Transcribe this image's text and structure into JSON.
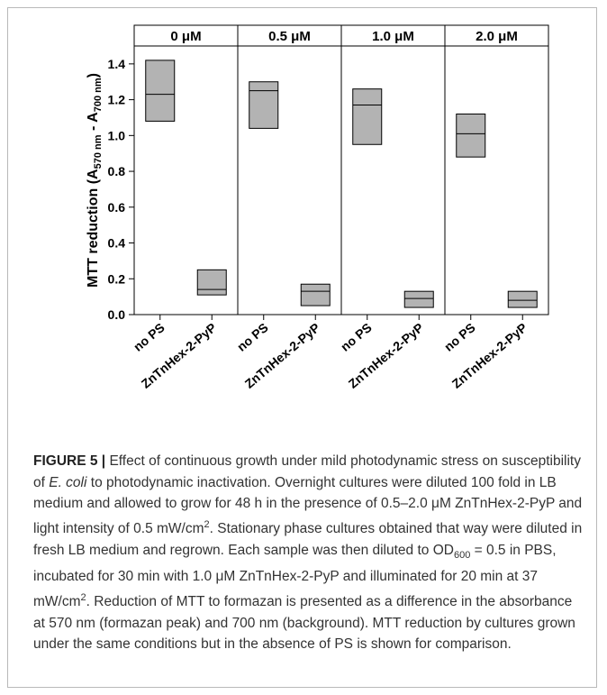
{
  "chart_data": {
    "type": "box",
    "ylabel": "MTT reduction (A570 nm - A700 nm)",
    "ylabel_parts": {
      "main": "MTT reduction (A",
      "sub1": "570 nm",
      "mid": " - A",
      "sub2": "700 nm",
      "end": ")"
    },
    "ylim": [
      0.0,
      1.5
    ],
    "yticks": [
      "0.0",
      "0.2",
      "0.4",
      "0.6",
      "0.8",
      "1.0",
      "1.2",
      "1.4"
    ],
    "ytick_values": [
      0.0,
      0.2,
      0.4,
      0.6,
      0.8,
      1.0,
      1.2,
      1.4
    ],
    "panels": [
      {
        "title": "0 μM",
        "groups": [
          {
            "category": "no PS",
            "low": 1.08,
            "median": 1.23,
            "high": 1.42
          },
          {
            "category": "ZnTnHex-2-PyP",
            "low": 0.11,
            "median": 0.14,
            "high": 0.25
          }
        ]
      },
      {
        "title": "0.5 μM",
        "groups": [
          {
            "category": "no PS",
            "low": 1.04,
            "median": 1.25,
            "high": 1.3
          },
          {
            "category": "ZnTnHex-2-PyP",
            "low": 0.05,
            "median": 0.13,
            "high": 0.17
          }
        ]
      },
      {
        "title": "1.0 μM",
        "groups": [
          {
            "category": "no PS",
            "low": 0.95,
            "median": 1.17,
            "high": 1.26
          },
          {
            "category": "ZnTnHex-2-PyP",
            "low": 0.04,
            "median": 0.09,
            "high": 0.13
          }
        ]
      },
      {
        "title": "2.0 μM",
        "groups": [
          {
            "category": "no PS",
            "low": 0.88,
            "median": 1.01,
            "high": 1.12
          },
          {
            "category": "ZnTnHex-2-PyP",
            "low": 0.04,
            "median": 0.08,
            "high": 0.13
          }
        ]
      }
    ],
    "colors": {
      "box_fill": "#b3b3b3",
      "box_stroke": "#000000"
    }
  },
  "caption": {
    "label": "FIGURE 5 |",
    "text_parts": [
      {
        "t": " Effect of continuous growth under mild photodynamic stress on susceptibility of "
      },
      {
        "t": "E. coli",
        "style": "i"
      },
      {
        "t": " to photodynamic inactivation. Overnight cultures were diluted 100 fold in LB medium and allowed to grow for 48 h in the presence of 0.5–2.0 μM ZnTnHex-2-PyP and light intensity of 0.5 mW/cm"
      },
      {
        "t": "2",
        "style": "sup"
      },
      {
        "t": ". Stationary phase cultures obtained that way were diluted in fresh LB medium and regrown. Each sample was then diluted to OD"
      },
      {
        "t": "600",
        "style": "sub"
      },
      {
        "t": " = 0.5 in PBS, incubated for 30 min with 1.0 μM ZnTnHex-2-PyP and illuminated for 20 min at 37 mW/cm"
      },
      {
        "t": "2",
        "style": "sup"
      },
      {
        "t": ". Reduction of MTT to formazan is presented as a difference in the absorbance at 570 nm (formazan peak) and 700 nm (background). MTT reduction by cultures grown under the same conditions but in the absence of PS is shown for comparison."
      }
    ]
  }
}
